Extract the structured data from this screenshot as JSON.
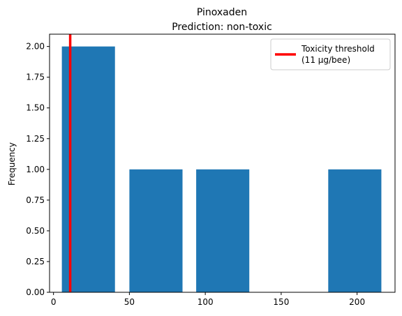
{
  "chart_data": {
    "type": "bar",
    "title": "Pinoxaden",
    "subtitle": "Prediction: non-toxic",
    "xlabel": "",
    "ylabel": "Frequency",
    "xlim": [
      -2.6,
      225
    ],
    "ylim": [
      0,
      2.1
    ],
    "xticks": [
      {
        "value": 0,
        "label": "0"
      },
      {
        "value": 50,
        "label": "50"
      },
      {
        "value": 100,
        "label": "100"
      },
      {
        "value": 150,
        "label": "150"
      },
      {
        "value": 200,
        "label": "200"
      }
    ],
    "yticks": [
      {
        "value": 0,
        "label": "0.00"
      },
      {
        "value": 0.25,
        "label": "0.25"
      },
      {
        "value": 0.5,
        "label": "0.50"
      },
      {
        "value": 0.75,
        "label": "0.75"
      },
      {
        "value": 1.0,
        "label": "1.00"
      },
      {
        "value": 1.25,
        "label": "1.25"
      },
      {
        "value": 1.5,
        "label": "1.50"
      },
      {
        "value": 1.75,
        "label": "1.75"
      },
      {
        "value": 2.0,
        "label": "2.00"
      }
    ],
    "bins": [
      {
        "x0": 5.5,
        "x1": 40.5,
        "count": 2
      },
      {
        "x0": 50,
        "x1": 85,
        "count": 1
      },
      {
        "x0": 94,
        "x1": 129,
        "count": 1
      },
      {
        "x0": 138.5,
        "x1": 173.5,
        "count": 0
      },
      {
        "x0": 181,
        "x1": 216,
        "count": 1
      }
    ],
    "bar_color": "#1f77b4",
    "threshold": {
      "value": 11,
      "color": "#ff0000",
      "label_line1": "Toxicity threshold",
      "label_line2": "(11 µg/bee)"
    },
    "legend_position": "upper right",
    "grid": false
  }
}
